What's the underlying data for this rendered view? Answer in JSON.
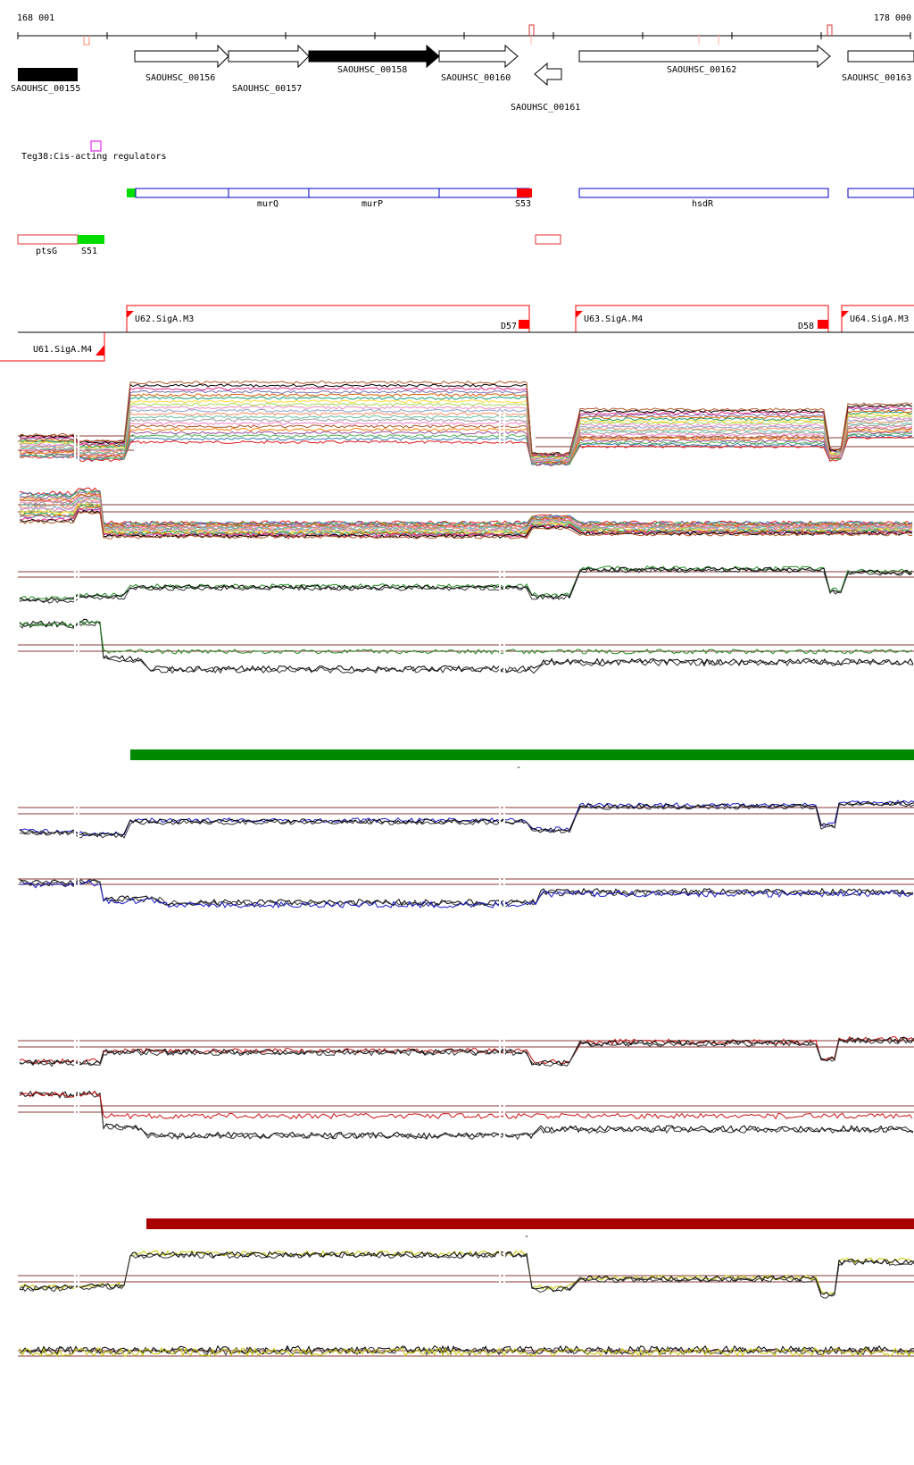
{
  "axis": {
    "start_label": "168 001",
    "end_label": "178 000"
  },
  "genes": [
    {
      "id": "SAOUHSC_00155",
      "strand": "-",
      "filled": true
    },
    {
      "id": "SAOUHSC_00156",
      "strand": "+",
      "filled": false
    },
    {
      "id": "SAOUHSC_00157",
      "strand": "+",
      "filled": false
    },
    {
      "id": "SAOUHSC_00158",
      "strand": "+",
      "filled": true
    },
    {
      "id": "SAOUHSC_00160",
      "strand": "+",
      "filled": false
    },
    {
      "id": "SAOUHSC_00161",
      "strand": "-",
      "filled": false
    },
    {
      "id": "SAOUHSC_00162",
      "strand": "+",
      "filled": false
    },
    {
      "id": "SAOUHSC_00163",
      "strand": "+",
      "filled": false
    }
  ],
  "regulator": {
    "label": "Teg38:Cis-acting regulators",
    "color": "#e000e0"
  },
  "operon_labels": {
    "murQ": "murQ",
    "murP": "murP",
    "S53": "S53",
    "hsdR": "hsdR",
    "ptsG": "ptsG",
    "S51": "S51"
  },
  "transcription_units": {
    "U62": "U62.SigA.M3",
    "U63": "U63.SigA.M4",
    "U64": "U64.SigA.M3",
    "U61": "U61.SigA.M4",
    "D57": "D57",
    "D58": "D58"
  },
  "bands": {
    "green_label": "-",
    "red_label": "-"
  },
  "colors": {
    "operon_blue": "#0000cc",
    "feature_red": "#ff0000",
    "feature_green": "#00dd00",
    "green_band": "#008800",
    "red_band": "#aa0000",
    "green_trace": "#228B22",
    "blue_trace": "#1a1acc",
    "red_trace": "#cc1111",
    "yellow_trace": "#c8c800",
    "threshold_line": "#8b3a3a"
  }
}
